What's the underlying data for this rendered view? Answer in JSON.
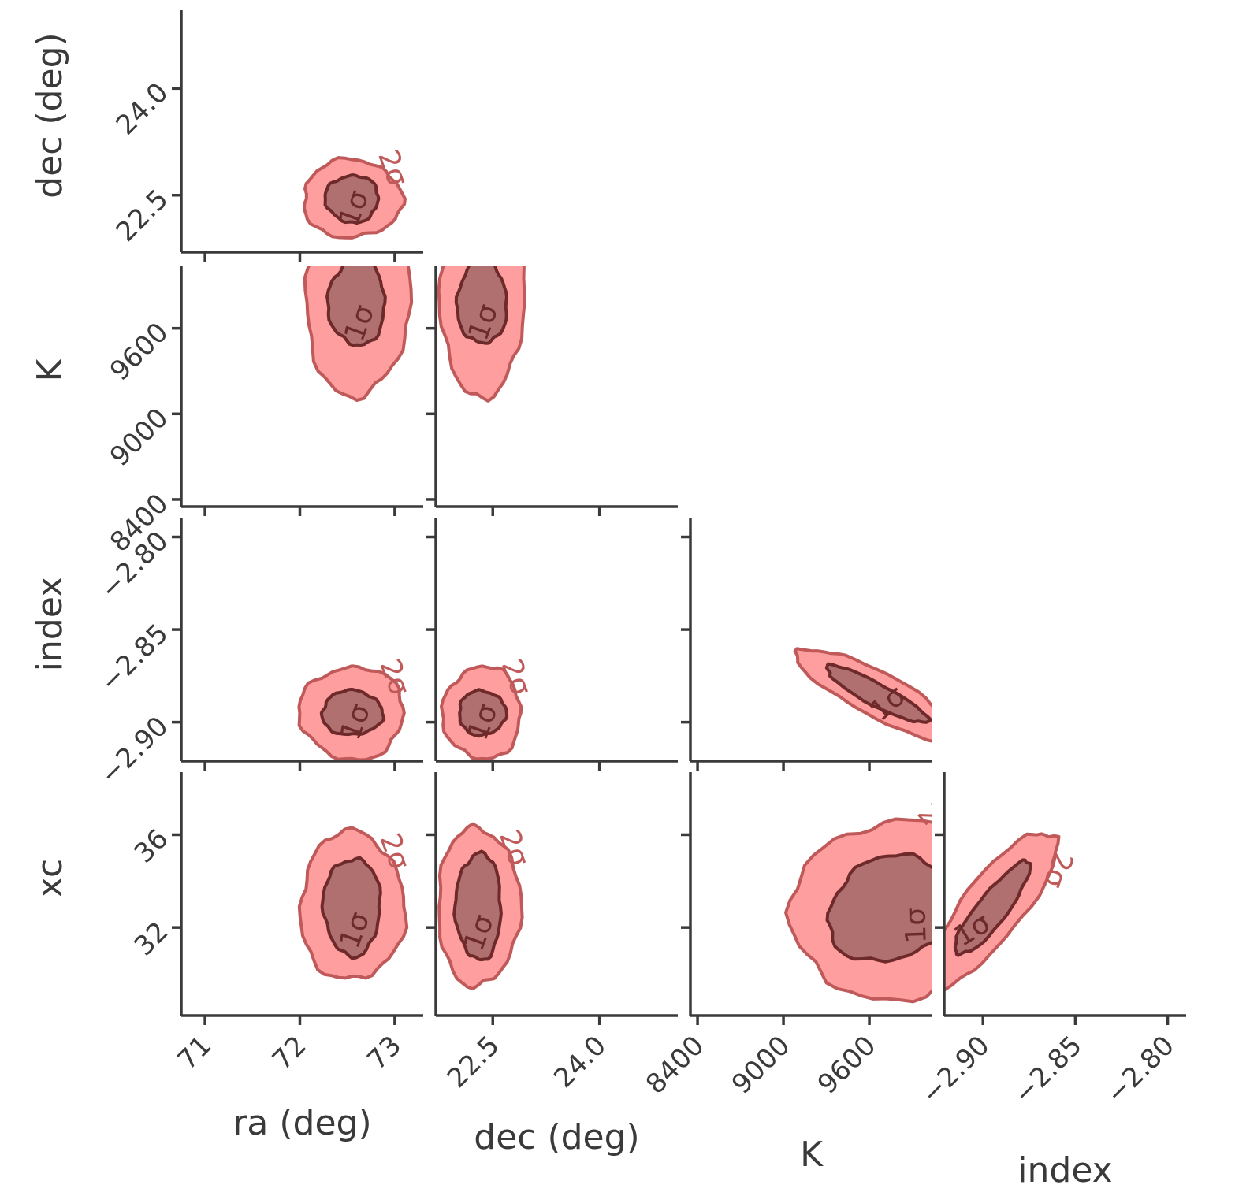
{
  "chart_data": {
    "type": "corner",
    "title": "",
    "parameters": [
      {
        "key": "ra",
        "label": "ra (deg)",
        "range": [
          70.75,
          73.3
        ],
        "ticks": [
          71,
          72,
          73
        ],
        "tick_labels": [
          "71",
          "72",
          "73"
        ]
      },
      {
        "key": "dec",
        "label": "dec (deg)",
        "range": [
          21.7,
          25.1
        ],
        "ticks": [
          22.5,
          24.0
        ],
        "tick_labels": [
          "22.5",
          "24.0"
        ]
      },
      {
        "key": "K",
        "label": "K",
        "range": [
          8350,
          10040
        ],
        "ticks": [
          8400,
          9000,
          9600
        ],
        "tick_labels": [
          "8400",
          "9000",
          "9600"
        ]
      },
      {
        "key": "index",
        "label": "index",
        "range": [
          -2.921,
          -2.79
        ],
        "ticks": [
          -2.9,
          -2.85,
          -2.8
        ],
        "tick_labels": [
          "−2.90",
          "−2.85",
          "−2.80"
        ]
      },
      {
        "key": "xc",
        "label": "xc",
        "range": [
          28.2,
          38.7
        ],
        "ticks": [
          32,
          36
        ],
        "tick_labels": [
          "32",
          "36"
        ]
      }
    ],
    "contour_levels": [
      "1σ",
      "2σ"
    ],
    "colors": {
      "inner_fill": "#b07070",
      "inner_line": "#6e2a2a",
      "outer_fill": "#ff9e9e",
      "outer_line": "#c05a5a",
      "axis": "#3a3a3a"
    },
    "panels": [
      {
        "x": "ra",
        "y": "dec",
        "center": [
          72.55,
          22.45
        ],
        "inner_half": [
          0.28,
          0.33
        ],
        "outer_half": [
          0.52,
          0.55
        ]
      },
      {
        "x": "ra",
        "y": "K",
        "center": [
          72.6,
          9780
        ],
        "inner_half": [
          0.3,
          300
        ],
        "outer_half": [
          0.55,
          650
        ]
      },
      {
        "x": "dec",
        "y": "K",
        "center": [
          22.35,
          9780
        ],
        "inner_half": [
          0.35,
          290
        ],
        "outer_half": [
          0.6,
          650
        ]
      },
      {
        "x": "ra",
        "y": "index",
        "center": [
          72.55,
          -2.895
        ],
        "inner_half": [
          0.32,
          0.012
        ],
        "outer_half": [
          0.55,
          0.025
        ]
      },
      {
        "x": "dec",
        "y": "index",
        "center": [
          22.35,
          -2.895
        ],
        "inner_half": [
          0.33,
          0.012
        ],
        "outer_half": [
          0.55,
          0.025
        ]
      },
      {
        "x": "K",
        "y": "index",
        "center": [
          9650,
          -2.885
        ],
        "inner_half": [
          400,
          0.006
        ],
        "outer_half": [
          620,
          0.012
        ]
      },
      {
        "x": "ra",
        "y": "xc",
        "center": [
          72.55,
          32.9
        ],
        "inner_half": [
          0.3,
          2.1
        ],
        "outer_half": [
          0.55,
          3.2
        ]
      },
      {
        "x": "dec",
        "y": "xc",
        "center": [
          22.3,
          32.9
        ],
        "inner_half": [
          0.32,
          2.3
        ],
        "outer_half": [
          0.58,
          3.4
        ]
      },
      {
        "x": "K",
        "y": "xc",
        "center": [
          9750,
          32.8
        ],
        "inner_half": [
          450,
          2.2
        ],
        "outer_half": [
          700,
          3.8
        ]
      },
      {
        "x": "index",
        "y": "xc",
        "center": [
          -2.895,
          32.8
        ],
        "inner_half": [
          0.008,
          2.5
        ],
        "outer_half": [
          0.016,
          4.2
        ]
      }
    ]
  }
}
